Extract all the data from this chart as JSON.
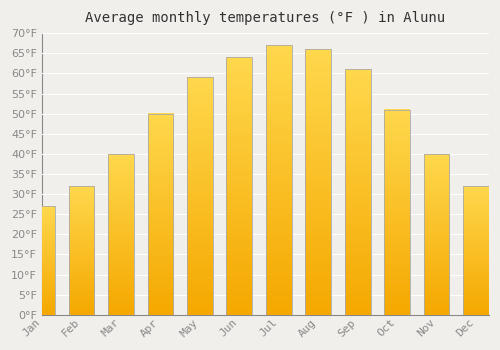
{
  "title": "Average monthly temperatures (°F ) in Alunu",
  "months": [
    "Jan",
    "Feb",
    "Mar",
    "Apr",
    "May",
    "Jun",
    "Jul",
    "Aug",
    "Sep",
    "Oct",
    "Nov",
    "Dec"
  ],
  "values": [
    27,
    32,
    40,
    50,
    59,
    64,
    67,
    66,
    61,
    51,
    40,
    32
  ],
  "bar_color_bottom": "#F5A800",
  "bar_color_top": "#FFD84D",
  "bar_edge_color": "#AAAAAA",
  "background_color": "#F0EFEB",
  "grid_color": "#FFFFFF",
  "ylim": [
    0,
    70
  ],
  "yticks": [
    0,
    5,
    10,
    15,
    20,
    25,
    30,
    35,
    40,
    45,
    50,
    55,
    60,
    65,
    70
  ],
  "title_fontsize": 10,
  "tick_fontsize": 8,
  "tick_color": "#888888",
  "title_color": "#333333"
}
